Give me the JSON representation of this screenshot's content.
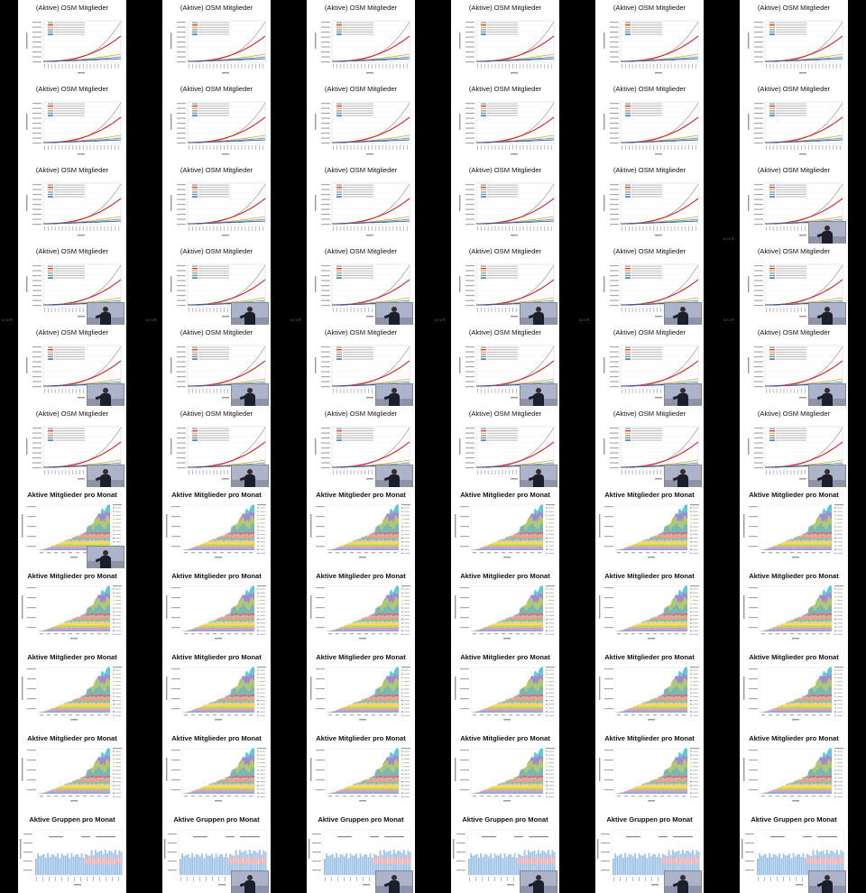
{
  "contact_sheet": {
    "columns": 6,
    "rows": 11,
    "slide_titles": {
      "osm": "(Aktive) OSM Mitglieder",
      "monthly_members": "Aktive Mitglieder pro Monat",
      "monthly_groups": "Aktive Gruppen pro Monat"
    },
    "row_layout": [
      "osm",
      "osm",
      "osm",
      "osm",
      "osm",
      "osm",
      "monthly_members",
      "monthly_members",
      "monthly_members",
      "monthly_members",
      "monthly_groups"
    ],
    "pager_text": "< / > ≡",
    "colors": {
      "page_background": "#000000",
      "slide_background": "#ffffff",
      "series_total": "#8c8c8c",
      "series_red": "#d62020",
      "series_orange": "#f0a030",
      "series_teal": "#3aa0a0",
      "series_blue": "#2040a0",
      "groups_blue": "#9ec3e6",
      "groups_pink": "#f4b6b6"
    },
    "thumbnails": [
      {
        "row": 0,
        "col": 0,
        "slide": "osm",
        "presenter": false,
        "pager": false
      },
      {
        "row": 0,
        "col": 1,
        "slide": "osm",
        "presenter": false,
        "pager": false
      },
      {
        "row": 0,
        "col": 2,
        "slide": "osm",
        "presenter": false,
        "pager": false
      },
      {
        "row": 0,
        "col": 3,
        "slide": "osm",
        "presenter": false,
        "pager": false
      },
      {
        "row": 0,
        "col": 4,
        "slide": "osm",
        "presenter": false,
        "pager": false
      },
      {
        "row": 0,
        "col": 5,
        "slide": "osm",
        "presenter": false,
        "pager": false
      },
      {
        "row": 1,
        "col": 0,
        "slide": "osm",
        "presenter": false,
        "pager": false
      },
      {
        "row": 1,
        "col": 1,
        "slide": "osm",
        "presenter": false,
        "pager": false
      },
      {
        "row": 1,
        "col": 2,
        "slide": "osm",
        "presenter": false,
        "pager": false
      },
      {
        "row": 1,
        "col": 3,
        "slide": "osm",
        "presenter": false,
        "pager": false
      },
      {
        "row": 1,
        "col": 4,
        "slide": "osm",
        "presenter": false,
        "pager": false
      },
      {
        "row": 1,
        "col": 5,
        "slide": "osm",
        "presenter": false,
        "pager": false
      },
      {
        "row": 2,
        "col": 0,
        "slide": "osm",
        "presenter": false,
        "pager": false
      },
      {
        "row": 2,
        "col": 1,
        "slide": "osm",
        "presenter": false,
        "pager": false
      },
      {
        "row": 2,
        "col": 2,
        "slide": "osm",
        "presenter": false,
        "pager": false
      },
      {
        "row": 2,
        "col": 3,
        "slide": "osm",
        "presenter": false,
        "pager": false
      },
      {
        "row": 2,
        "col": 4,
        "slide": "osm",
        "presenter": false,
        "pager": false
      },
      {
        "row": 2,
        "col": 5,
        "slide": "osm",
        "presenter": true,
        "pager": true
      },
      {
        "row": 3,
        "col": 0,
        "slide": "osm",
        "presenter": true,
        "pager": true
      },
      {
        "row": 3,
        "col": 1,
        "slide": "osm",
        "presenter": true,
        "pager": true
      },
      {
        "row": 3,
        "col": 2,
        "slide": "osm",
        "presenter": true,
        "pager": true
      },
      {
        "row": 3,
        "col": 3,
        "slide": "osm",
        "presenter": true,
        "pager": true
      },
      {
        "row": 3,
        "col": 4,
        "slide": "osm",
        "presenter": true,
        "pager": true
      },
      {
        "row": 3,
        "col": 5,
        "slide": "osm",
        "presenter": true,
        "pager": true
      },
      {
        "row": 4,
        "col": 0,
        "slide": "osm",
        "presenter": true,
        "pager": false
      },
      {
        "row": 4,
        "col": 1,
        "slide": "osm",
        "presenter": true,
        "pager": false
      },
      {
        "row": 4,
        "col": 2,
        "slide": "osm",
        "presenter": true,
        "pager": false
      },
      {
        "row": 4,
        "col": 3,
        "slide": "osm",
        "presenter": true,
        "pager": false
      },
      {
        "row": 4,
        "col": 4,
        "slide": "osm",
        "presenter": true,
        "pager": false
      },
      {
        "row": 4,
        "col": 5,
        "slide": "osm",
        "presenter": true,
        "pager": false
      },
      {
        "row": 5,
        "col": 0,
        "slide": "osm",
        "presenter": true,
        "pager": false
      },
      {
        "row": 5,
        "col": 1,
        "slide": "osm",
        "presenter": true,
        "pager": false
      },
      {
        "row": 5,
        "col": 2,
        "slide": "osm",
        "presenter": true,
        "pager": false
      },
      {
        "row": 5,
        "col": 3,
        "slide": "osm",
        "presenter": true,
        "pager": false
      },
      {
        "row": 5,
        "col": 4,
        "slide": "osm",
        "presenter": true,
        "pager": false
      },
      {
        "row": 5,
        "col": 5,
        "slide": "osm",
        "presenter": true,
        "pager": false
      },
      {
        "row": 6,
        "col": 0,
        "slide": "monthly_members",
        "presenter": true,
        "pager": false
      },
      {
        "row": 6,
        "col": 1,
        "slide": "monthly_members",
        "presenter": false,
        "pager": false
      },
      {
        "row": 6,
        "col": 2,
        "slide": "monthly_members",
        "presenter": false,
        "pager": false
      },
      {
        "row": 6,
        "col": 3,
        "slide": "monthly_members",
        "presenter": false,
        "pager": false
      },
      {
        "row": 6,
        "col": 4,
        "slide": "monthly_members",
        "presenter": false,
        "pager": false
      },
      {
        "row": 6,
        "col": 5,
        "slide": "monthly_members",
        "presenter": false,
        "pager": false
      },
      {
        "row": 7,
        "col": 0,
        "slide": "monthly_members",
        "presenter": false,
        "pager": false
      },
      {
        "row": 7,
        "col": 1,
        "slide": "monthly_members",
        "presenter": false,
        "pager": false
      },
      {
        "row": 7,
        "col": 2,
        "slide": "monthly_members",
        "presenter": false,
        "pager": false
      },
      {
        "row": 7,
        "col": 3,
        "slide": "monthly_members",
        "presenter": false,
        "pager": false
      },
      {
        "row": 7,
        "col": 4,
        "slide": "monthly_members",
        "presenter": false,
        "pager": false
      },
      {
        "row": 7,
        "col": 5,
        "slide": "monthly_members",
        "presenter": false,
        "pager": false
      },
      {
        "row": 8,
        "col": 0,
        "slide": "monthly_members",
        "presenter": false,
        "pager": false
      },
      {
        "row": 8,
        "col": 1,
        "slide": "monthly_members",
        "presenter": false,
        "pager": false
      },
      {
        "row": 8,
        "col": 2,
        "slide": "monthly_members",
        "presenter": false,
        "pager": false
      },
      {
        "row": 8,
        "col": 3,
        "slide": "monthly_members",
        "presenter": false,
        "pager": false
      },
      {
        "row": 8,
        "col": 4,
        "slide": "monthly_members",
        "presenter": false,
        "pager": false
      },
      {
        "row": 8,
        "col": 5,
        "slide": "monthly_members",
        "presenter": false,
        "pager": false
      },
      {
        "row": 9,
        "col": 0,
        "slide": "monthly_members",
        "presenter": false,
        "pager": false
      },
      {
        "row": 9,
        "col": 1,
        "slide": "monthly_members",
        "presenter": false,
        "pager": false
      },
      {
        "row": 9,
        "col": 2,
        "slide": "monthly_members",
        "presenter": false,
        "pager": false
      },
      {
        "row": 9,
        "col": 3,
        "slide": "monthly_members",
        "presenter": false,
        "pager": false
      },
      {
        "row": 9,
        "col": 4,
        "slide": "monthly_members",
        "presenter": false,
        "pager": false
      },
      {
        "row": 9,
        "col": 5,
        "slide": "monthly_members",
        "presenter": false,
        "pager": false
      },
      {
        "row": 10,
        "col": 0,
        "slide": "monthly_groups",
        "presenter": false,
        "pager": false
      },
      {
        "row": 10,
        "col": 1,
        "slide": "monthly_groups",
        "presenter": true,
        "pager": false
      },
      {
        "row": 10,
        "col": 2,
        "slide": "monthly_groups",
        "presenter": true,
        "pager": false
      },
      {
        "row": 10,
        "col": 3,
        "slide": "monthly_groups",
        "presenter": true,
        "pager": false
      },
      {
        "row": 10,
        "col": 4,
        "slide": "monthly_groups",
        "presenter": true,
        "pager": false
      },
      {
        "row": 10,
        "col": 5,
        "slide": "monthly_groups",
        "presenter": true,
        "pager": false
      }
    ]
  }
}
